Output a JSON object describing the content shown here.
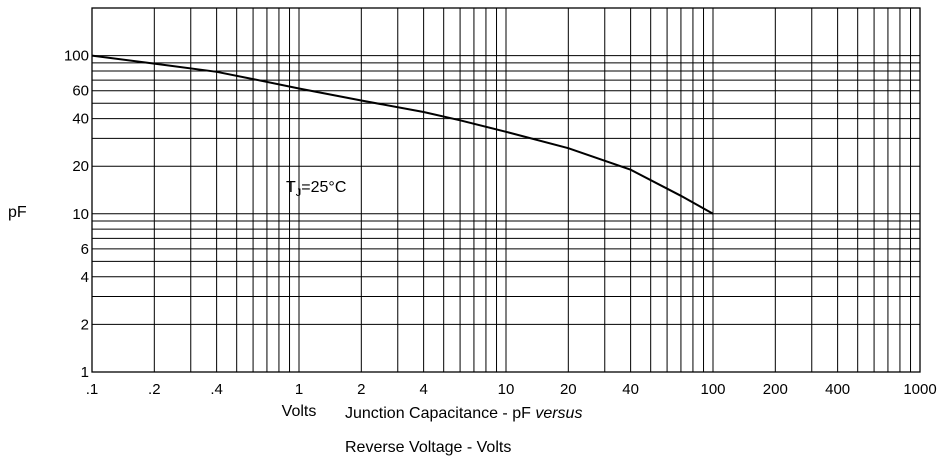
{
  "chart_data": {
    "type": "line",
    "x_scale": "log",
    "y_scale": "log",
    "xlim": [
      0.1,
      1000
    ],
    "ylim": [
      1,
      200
    ],
    "x_tick_labels": [
      {
        "value": 0.1,
        "label": ".1"
      },
      {
        "value": 0.2,
        "label": ".2"
      },
      {
        "value": 0.4,
        "label": ".4"
      },
      {
        "value": 1,
        "label": "1"
      },
      {
        "value": 2,
        "label": "2"
      },
      {
        "value": 4,
        "label": "4"
      },
      {
        "value": 10,
        "label": "10"
      },
      {
        "value": 20,
        "label": "20"
      },
      {
        "value": 40,
        "label": "40"
      },
      {
        "value": 100,
        "label": "100"
      },
      {
        "value": 200,
        "label": "200"
      },
      {
        "value": 400,
        "label": "400"
      },
      {
        "value": 1000,
        "label": "1000"
      }
    ],
    "y_tick_labels": [
      {
        "value": 1,
        "label": "1"
      },
      {
        "value": 2,
        "label": "2"
      },
      {
        "value": 4,
        "label": "4"
      },
      {
        "value": 6,
        "label": "6"
      },
      {
        "value": 10,
        "label": "10"
      },
      {
        "value": 20,
        "label": "20"
      },
      {
        "value": 40,
        "label": "40"
      },
      {
        "value": 60,
        "label": "60"
      },
      {
        "value": 100,
        "label": "100"
      }
    ],
    "xlabel": "Volts",
    "ylabel": "pF",
    "grid": true,
    "annotation": {
      "text_main": "T",
      "text_sub": "J",
      "text_rest": "=25°C",
      "x": 1.0,
      "y": 15
    },
    "caption": {
      "line1_prefix": "Junction Capacitance - pF ",
      "line1_italic": "versus",
      "line2": "Reverse Voltage - Volts"
    },
    "series": [
      {
        "x": [
          0.1,
          0.2,
          0.4,
          0.6,
          1,
          2,
          4,
          6,
          10,
          20,
          40,
          70,
          100
        ],
        "y": [
          100,
          89,
          79,
          71,
          62,
          52,
          44,
          39,
          33,
          26,
          19,
          13,
          10
        ]
      }
    ]
  }
}
